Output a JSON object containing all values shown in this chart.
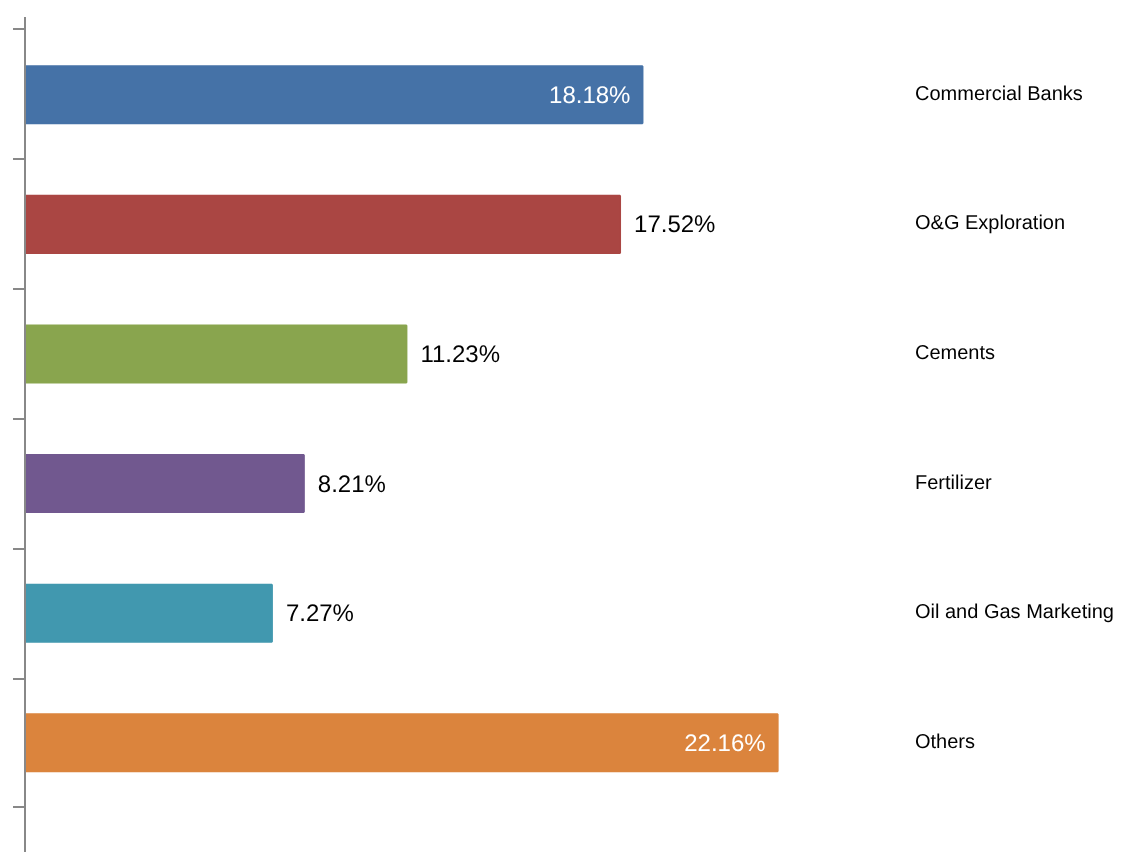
{
  "chart_data": {
    "type": "bar",
    "orientation": "horizontal",
    "categories": [
      "Commercial Banks",
      "O&G Exploration",
      "Cements",
      "Fertilizer",
      "Oil and Gas Marketing",
      "Others"
    ],
    "values": [
      18.18,
      17.52,
      11.23,
      8.21,
      7.27,
      22.16
    ],
    "colors": [
      "#4572a7",
      "#aa4643",
      "#89a54e",
      "#71588f",
      "#4198af",
      "#db843d"
    ],
    "value_labels": [
      "18.18%",
      "17.52%",
      "11.23%",
      "8.21%",
      "7.27%",
      "22.16%"
    ],
    "grid": false
  }
}
